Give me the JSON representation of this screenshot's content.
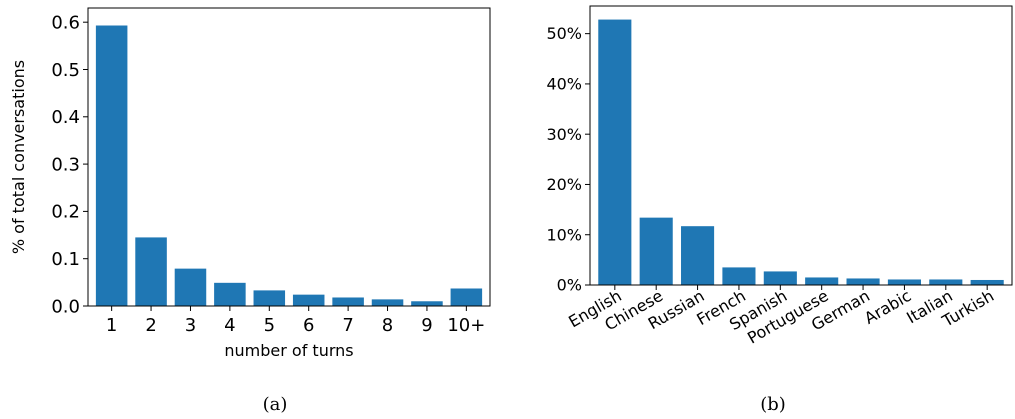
{
  "figure": {
    "caption_a": "(a)",
    "caption_b": "(b)"
  },
  "chart_data": [
    {
      "type": "bar",
      "id": "turns",
      "categories": [
        "1",
        "2",
        "3",
        "4",
        "5",
        "6",
        "7",
        "8",
        "9",
        "10+"
      ],
      "values": [
        0.593,
        0.145,
        0.079,
        0.049,
        0.033,
        0.024,
        0.018,
        0.014,
        0.01,
        0.037
      ],
      "title": "",
      "xlabel": "number of turns",
      "ylabel": "% of total conversations",
      "ylim": [
        0,
        0.63
      ],
      "yticks": [
        0.0,
        0.1,
        0.2,
        0.3,
        0.4,
        0.5,
        0.6
      ],
      "ytick_labels": [
        "0.0",
        "0.1",
        "0.2",
        "0.3",
        "0.4",
        "0.5",
        "0.6"
      ],
      "grid": false,
      "bar_color": "#1f77b4"
    },
    {
      "type": "bar",
      "id": "languages",
      "categories": [
        "English",
        "Chinese",
        "Russian",
        "French",
        "Spanish",
        "Portuguese",
        "German",
        "Arabic",
        "Italian",
        "Turkish"
      ],
      "values": [
        52.8,
        13.4,
        11.7,
        3.5,
        2.7,
        1.5,
        1.3,
        1.1,
        1.1,
        1.0
      ],
      "title": "",
      "xlabel": "",
      "ylabel": "",
      "ylim": [
        0,
        55.5
      ],
      "yticks": [
        0,
        10,
        20,
        30,
        40,
        50
      ],
      "ytick_labels": [
        "0%",
        "10%",
        "20%",
        "30%",
        "40%",
        "50%"
      ],
      "grid": false,
      "bar_color": "#1f77b4",
      "xtick_rotation": "rotated"
    }
  ]
}
